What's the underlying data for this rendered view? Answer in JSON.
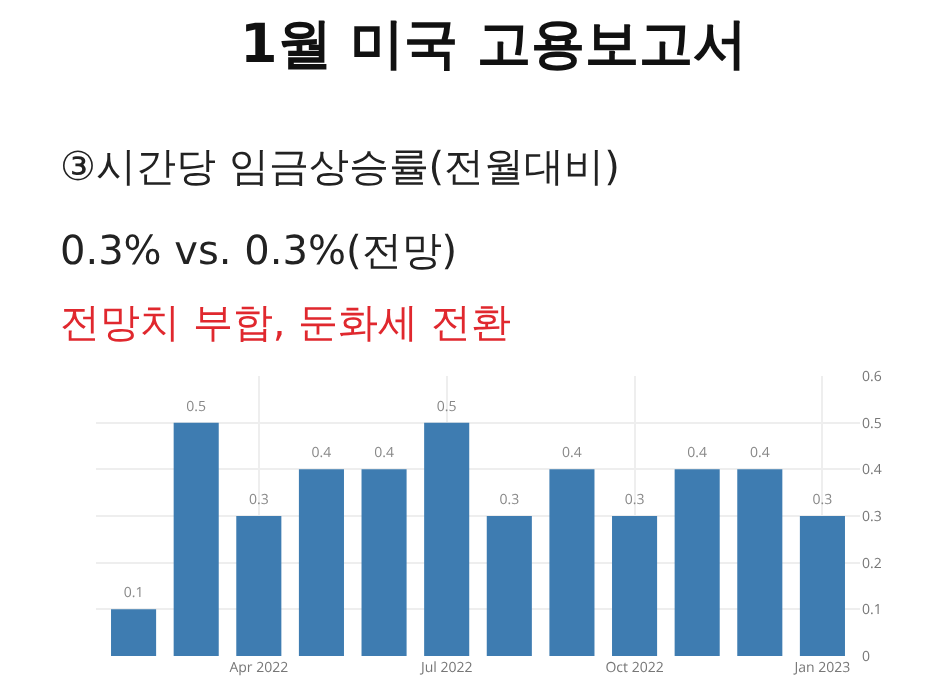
{
  "chart_data": {
    "type": "bar",
    "title": "1월 미국 고용보고서",
    "subtitle": "③시간당 임금상승률(전월대비)",
    "annotations": [
      "0.3%  vs.  0.3%(전망)",
      "전망치 부합, 둔화세 전환"
    ],
    "categories": [
      null,
      null,
      "Apr 2022",
      null,
      null,
      "Jul 2022",
      null,
      null,
      "Oct 2022",
      null,
      null,
      "Jan 2023"
    ],
    "values": [
      0.1,
      0.5,
      0.3,
      0.4,
      0.4,
      0.5,
      0.3,
      0.4,
      0.3,
      0.4,
      0.4,
      0.3
    ],
    "color": "#3e7cb1",
    "data_labels": true,
    "ylim": [
      0,
      0.6
    ],
    "yticks": [
      0,
      0.1,
      0.2,
      0.3,
      0.4,
      0.5,
      0.6
    ],
    "grid": true
  }
}
